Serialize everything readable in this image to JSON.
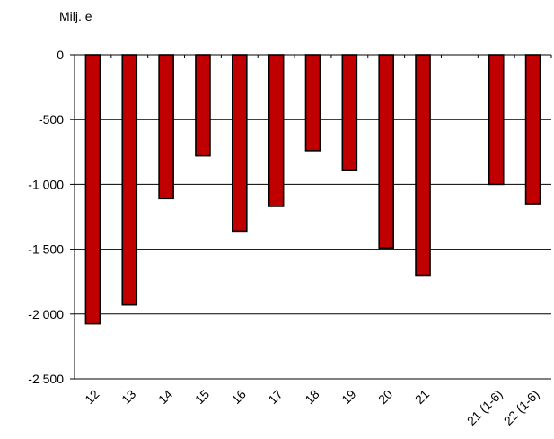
{
  "chart_data": {
    "type": "bar",
    "ylabel": "Milj. e",
    "categories": [
      "12",
      "13",
      "14",
      "15",
      "16",
      "17",
      "18",
      "19",
      "20",
      "21",
      "",
      "21 (1-6)",
      "22 (1-6)"
    ],
    "values": [
      -2075,
      -1930,
      -1110,
      -780,
      -1360,
      -1170,
      -740,
      -890,
      -1490,
      -1700,
      null,
      -1000,
      -1150
    ],
    "ylim": [
      -2500,
      0
    ],
    "yticks": [
      0,
      -500,
      -1000,
      -1500,
      -2000,
      -2500
    ],
    "ytick_labels": [
      "0",
      "-500",
      "-1 000",
      "-1 500",
      "-2 000",
      "-2 500"
    ],
    "grid": true,
    "colors": {
      "bar": "#c00000",
      "bar_edge": "#000000",
      "grid": "#000000"
    }
  }
}
